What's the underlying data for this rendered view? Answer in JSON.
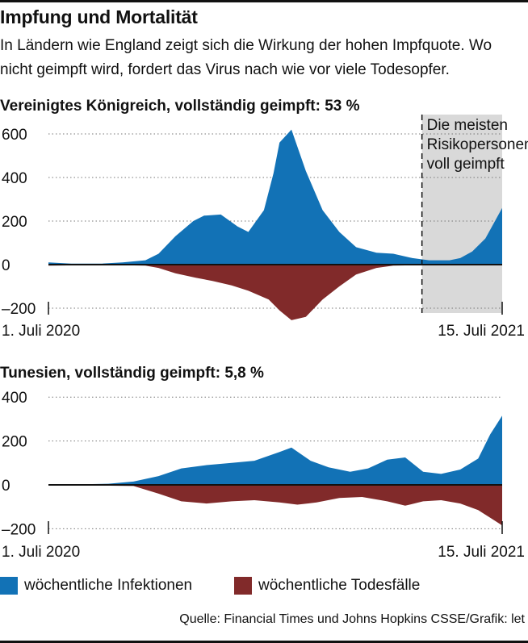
{
  "title": "Impfung und Mortalität",
  "subtitle": "In Ländern wie England zeigt sich die Wirkung der hohen Impfquote. Wo nicht geimpft wird, fordert das Virus nach wie vor viele Todesopfer.",
  "colors": {
    "infections": "#1272b6",
    "deaths": "#812a2a",
    "highlight_band": "#d9d9d9",
    "gridline": "#777777"
  },
  "legend": {
    "infections": "wöchentliche Infektionen",
    "deaths": "wöchentliche Todesfälle"
  },
  "source": "Quelle: Financial Times und Johns Hopkins CSSE/Grafik: let",
  "chart_data": [
    {
      "type": "area",
      "title": "Vereinigtes Königreich, vollständig geimpft: 53 %",
      "x_start_label": "1. Juli 2020",
      "x_end_label": "15. Juli 2021",
      "y_ticks": [
        "600",
        "400",
        "200",
        "0",
        "–200"
      ],
      "y_tick_values": [
        600,
        400,
        200,
        0,
        -200
      ],
      "ylim": [
        -200,
        600
      ],
      "grid": true,
      "highlight": {
        "from": "2021-05-09",
        "to": "2021-07-15",
        "label": [
          "Die meisten",
          "Risikopersonen",
          "voll geimpft"
        ]
      },
      "series": [
        {
          "name": "wöchentliche Infektionen",
          "x": [
            "2020-07-01",
            "2020-07-20",
            "2020-08-15",
            "2020-09-01",
            "2020-09-20",
            "2020-10-01",
            "2020-10-15",
            "2020-10-30",
            "2020-11-08",
            "2020-11-22",
            "2020-12-06",
            "2020-12-15",
            "2020-12-28",
            "2021-01-05",
            "2021-01-10",
            "2021-01-20",
            "2021-02-01",
            "2021-02-15",
            "2021-03-01",
            "2021-03-15",
            "2021-04-01",
            "2021-04-15",
            "2021-05-01",
            "2021-05-15",
            "2021-06-01",
            "2021-06-10",
            "2021-06-20",
            "2021-07-01",
            "2021-07-10",
            "2021-07-15"
          ],
          "values": [
            10,
            5,
            5,
            10,
            20,
            50,
            130,
            200,
            225,
            230,
            175,
            150,
            250,
            420,
            560,
            620,
            430,
            250,
            150,
            80,
            55,
            50,
            30,
            20,
            20,
            30,
            60,
            120,
            210,
            260
          ]
        },
        {
          "name": "wöchentliche Todesfälle",
          "x": [
            "2020-07-01",
            "2020-08-01",
            "2020-09-01",
            "2020-09-20",
            "2020-10-01",
            "2020-10-15",
            "2020-11-01",
            "2020-11-15",
            "2020-12-01",
            "2020-12-15",
            "2021-01-01",
            "2021-01-10",
            "2021-01-20",
            "2021-02-01",
            "2021-02-15",
            "2021-03-01",
            "2021-03-15",
            "2021-04-01",
            "2021-04-15",
            "2021-05-01",
            "2021-07-15"
          ],
          "values": [
            -5,
            -3,
            -3,
            -5,
            -15,
            -40,
            -60,
            -75,
            -95,
            -120,
            -160,
            -210,
            -255,
            -240,
            -160,
            -100,
            -45,
            -15,
            -5,
            -3,
            -2
          ]
        }
      ]
    },
    {
      "type": "area",
      "title": "Tunesien, vollständig geimpft: 5,8 %",
      "x_start_label": "1. Juli 2020",
      "x_end_label": "15. Juli 2021",
      "y_ticks": [
        "400",
        "200",
        "0",
        "–200"
      ],
      "y_tick_values": [
        400,
        200,
        0,
        -200
      ],
      "ylim": [
        -200,
        400
      ],
      "grid": true,
      "series": [
        {
          "name": "wöchentliche Infektionen",
          "x": [
            "2020-07-01",
            "2020-08-20",
            "2020-09-10",
            "2020-10-01",
            "2020-10-20",
            "2020-11-10",
            "2020-12-01",
            "2020-12-20",
            "2021-01-10",
            "2021-01-20",
            "2021-02-05",
            "2021-02-20",
            "2021-03-10",
            "2021-03-25",
            "2021-04-10",
            "2021-04-25",
            "2021-05-10",
            "2021-05-25",
            "2021-06-10",
            "2021-06-25",
            "2021-07-05",
            "2021-07-15"
          ],
          "values": [
            0,
            5,
            15,
            40,
            75,
            90,
            100,
            110,
            150,
            170,
            110,
            80,
            60,
            75,
            115,
            125,
            60,
            50,
            70,
            120,
            230,
            315
          ]
        },
        {
          "name": "wöchentliche Todesfälle",
          "x": [
            "2020-07-01",
            "2020-09-10",
            "2020-10-01",
            "2020-10-20",
            "2020-11-10",
            "2020-12-01",
            "2020-12-20",
            "2021-01-10",
            "2021-01-25",
            "2021-02-10",
            "2021-03-01",
            "2021-03-20",
            "2021-04-10",
            "2021-04-25",
            "2021-05-10",
            "2021-05-25",
            "2021-06-10",
            "2021-06-25",
            "2021-07-05",
            "2021-07-15"
          ],
          "values": [
            0,
            -5,
            -40,
            -75,
            -85,
            -75,
            -70,
            -80,
            -90,
            -80,
            -60,
            -55,
            -75,
            -95,
            -75,
            -70,
            -85,
            -115,
            -150,
            -185
          ]
        }
      ]
    }
  ]
}
